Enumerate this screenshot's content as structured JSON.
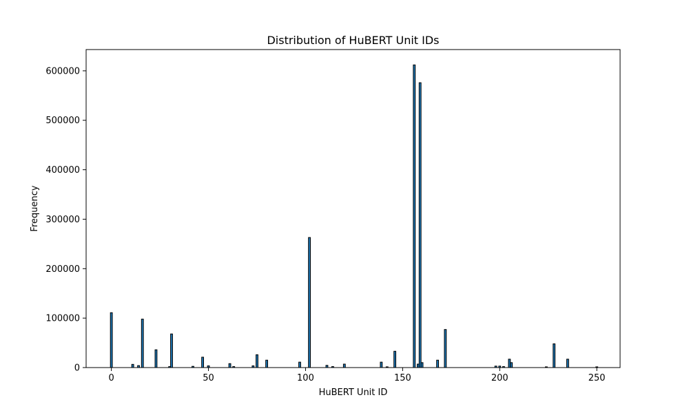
{
  "chart_data": {
    "type": "bar",
    "title": "Distribution of HuBERT Unit IDs",
    "xlabel": "HuBERT Unit ID",
    "ylabel": "Frequency",
    "xlim": [
      -13,
      262
    ],
    "ylim": [
      0,
      643000
    ],
    "xticks": [
      0,
      50,
      100,
      150,
      200,
      250
    ],
    "yticks": [
      0,
      100000,
      200000,
      300000,
      400000,
      500000,
      600000
    ],
    "grid": false,
    "bar_color": "#1f77b4",
    "edge_color": "#000000",
    "bar_width": 1,
    "x": [
      0,
      11,
      14,
      16,
      23,
      30,
      31,
      42,
      47,
      50,
      61,
      63,
      73,
      75,
      80,
      97,
      102,
      111,
      114,
      120,
      139,
      142,
      146,
      156,
      158,
      159,
      160,
      168,
      172,
      198,
      200,
      202,
      205,
      206,
      224,
      228,
      235,
      250
    ],
    "values": [
      111000,
      6500,
      4000,
      98000,
      36000,
      2000,
      68000,
      2500,
      21000,
      3500,
      8000,
      2000,
      3500,
      26000,
      15000,
      11000,
      263000,
      4500,
      2000,
      7000,
      11000,
      1500,
      33000,
      612000,
      7000,
      576000,
      10000,
      15000,
      77000,
      3000,
      3000,
      2000,
      17000,
      10000,
      1500,
      48000,
      17000,
      1500
    ]
  }
}
